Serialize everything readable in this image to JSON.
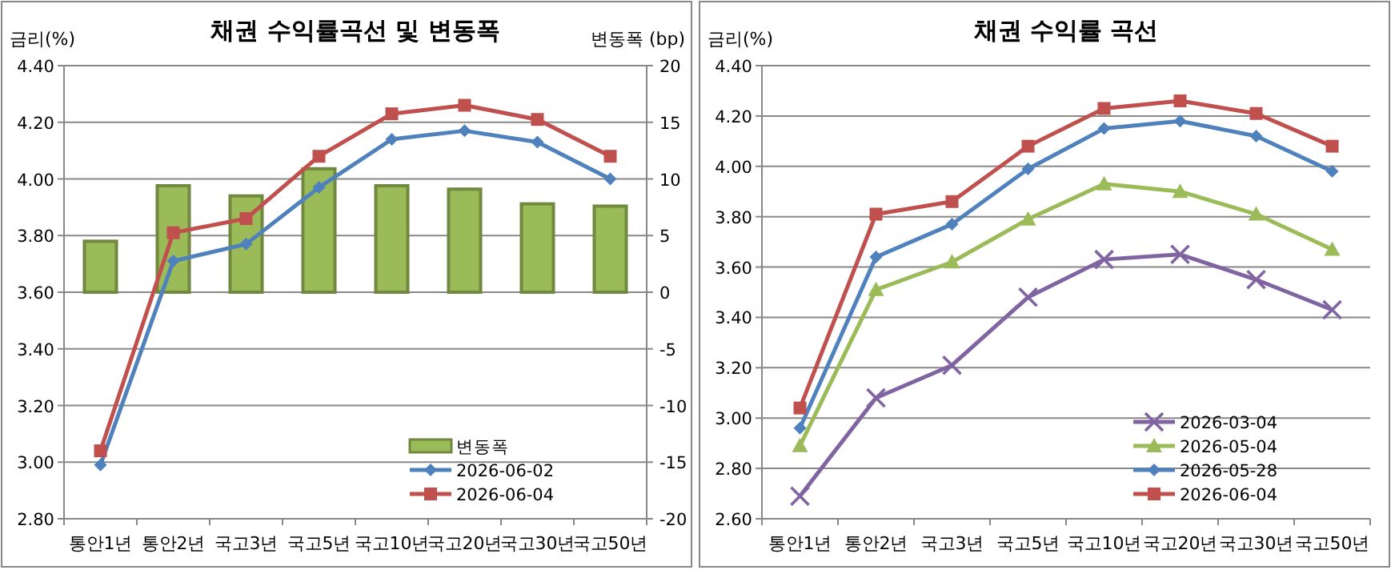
{
  "chart_data": [
    {
      "type": "line",
      "title": "채권 수익률곡선 및 변동폭",
      "ylabel": "금리(%)",
      "y2label": "변동폭 (bp)",
      "categories": [
        "통안1년",
        "통안2년",
        "국고3년",
        "국고5년",
        "국고10년",
        "국고20년",
        "국고30년",
        "국고50년"
      ],
      "series": [
        {
          "name": "변동폭",
          "type": "bar",
          "axis": "y2",
          "color": "#9bbb59",
          "values": [
            4.5,
            9.4,
            8.5,
            10.9,
            9.4,
            9.1,
            7.8,
            7.6
          ]
        },
        {
          "name": "2026-06-02",
          "color": "#4f81bd",
          "marker": "diamond",
          "values": [
            2.99,
            3.71,
            3.77,
            3.97,
            4.14,
            4.17,
            4.13,
            4.0
          ]
        },
        {
          "name": "2026-06-04",
          "color": "#c0504d",
          "marker": "square",
          "values": [
            3.04,
            3.81,
            3.86,
            4.08,
            4.23,
            4.26,
            4.21,
            4.08
          ]
        }
      ],
      "ylim": [
        2.8,
        4.4
      ],
      "yticks": [
        {
          "value": 2.8,
          "label": "2.80"
        },
        {
          "value": 3.0,
          "label": "3.00"
        },
        {
          "value": 3.2,
          "label": "3.20"
        },
        {
          "value": 3.4,
          "label": "3.40"
        },
        {
          "value": 3.6,
          "label": "3.60"
        },
        {
          "value": 3.8,
          "label": "3.80"
        },
        {
          "value": 4.0,
          "label": "4.00"
        },
        {
          "value": 4.2,
          "label": "4.20"
        },
        {
          "value": 4.4,
          "label": "4.40"
        }
      ],
      "y2lim": [
        -20,
        20
      ],
      "y2ticks": [
        -20,
        -15,
        -10,
        -5,
        0,
        5,
        10,
        15,
        20
      ],
      "grid": "y",
      "legend": "bottom right"
    },
    {
      "type": "line",
      "title": "채권 수익률 곡선",
      "ylabel": "금리(%)",
      "categories": [
        "통안1년",
        "통안2년",
        "국고3년",
        "국고5년",
        "국고10년",
        "국고20년",
        "국고30년",
        "국고50년"
      ],
      "series": [
        {
          "name": "2026-03-04",
          "color": "#8064a2",
          "marker": "cross",
          "values": [
            2.69,
            3.08,
            3.21,
            3.48,
            3.63,
            3.65,
            3.55,
            3.43
          ]
        },
        {
          "name": "2026-05-04",
          "color": "#9bbb59",
          "marker": "triangle",
          "values": [
            2.89,
            3.51,
            3.62,
            3.79,
            3.93,
            3.9,
            3.81,
            3.67
          ]
        },
        {
          "name": "2026-05-28",
          "color": "#4f81bd",
          "marker": "diamond",
          "values": [
            2.96,
            3.64,
            3.77,
            3.99,
            4.15,
            4.18,
            4.12,
            3.98
          ]
        },
        {
          "name": "2026-06-04",
          "color": "#c0504d",
          "marker": "square",
          "values": [
            3.04,
            3.81,
            3.86,
            4.08,
            4.23,
            4.26,
            4.21,
            4.08
          ]
        }
      ],
      "ylim": [
        2.6,
        4.4
      ],
      "yticks": [
        {
          "value": 2.6,
          "label": "2.60"
        },
        {
          "value": 2.8,
          "label": "2.80"
        },
        {
          "value": 3.0,
          "label": "3.00"
        },
        {
          "value": 3.2,
          "label": "3.20"
        },
        {
          "value": 3.4,
          "label": "3.40"
        },
        {
          "value": 3.6,
          "label": "3.60"
        },
        {
          "value": 3.8,
          "label": "3.80"
        },
        {
          "value": 4.0,
          "label": "4.00"
        },
        {
          "value": 4.2,
          "label": "4.20"
        },
        {
          "value": 4.4,
          "label": "4.40"
        }
      ],
      "grid": "y",
      "legend": "bottom right"
    }
  ]
}
